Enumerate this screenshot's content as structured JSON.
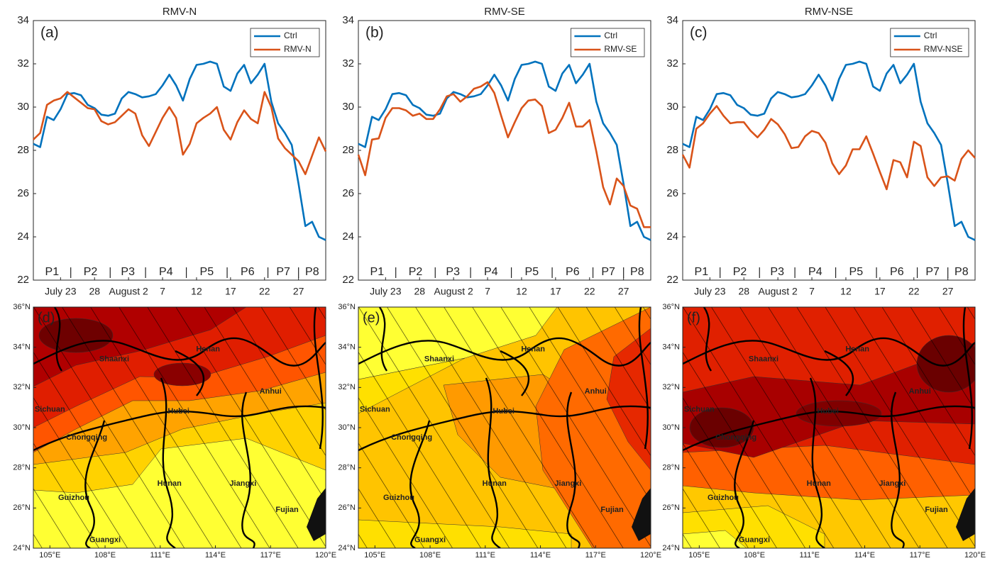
{
  "chart_data": [
    {
      "type": "line",
      "title": "RMV-N",
      "panel_label": "(a)",
      "categories": [
        null,
        null,
        null,
        null,
        "July 23",
        null,
        null,
        null,
        null,
        "28",
        null,
        null,
        null,
        null,
        "August 2",
        null,
        null,
        null,
        null,
        "7",
        null,
        null,
        null,
        null,
        "12",
        null,
        null,
        null,
        null,
        "17",
        null,
        null,
        null,
        null,
        "22",
        null,
        null,
        null,
        null,
        "27",
        null,
        null,
        null,
        null
      ],
      "series": [
        {
          "name": "Ctrl",
          "color": "#0072bd",
          "values": [
            28.3,
            28.15,
            29.55,
            29.4,
            29.9,
            30.6,
            30.65,
            30.55,
            30.1,
            29.95,
            29.65,
            29.6,
            29.7,
            30.4,
            30.7,
            30.6,
            30.45,
            30.5,
            30.6,
            31.0,
            31.5,
            31.0,
            30.3,
            31.3,
            31.95,
            32.0,
            32.1,
            32.0,
            30.95,
            30.75,
            31.55,
            31.95,
            31.1,
            31.5,
            32.0,
            30.25,
            29.25,
            28.8,
            28.25,
            26.45,
            24.5,
            24.7,
            24.0,
            23.85
          ]
        },
        {
          "name": "RMV-N",
          "color": "#d95319",
          "values": [
            28.5,
            28.8,
            30.1,
            30.3,
            30.4,
            30.7,
            30.45,
            30.2,
            29.95,
            29.9,
            29.35,
            29.2,
            29.3,
            29.6,
            29.9,
            29.7,
            28.7,
            28.2,
            28.85,
            29.5,
            30.0,
            29.5,
            27.8,
            28.3,
            29.25,
            29.5,
            29.7,
            30.0,
            28.95,
            28.5,
            29.3,
            29.85,
            29.45,
            29.25,
            30.7,
            30.0,
            28.55,
            28.1,
            27.8,
            27.5,
            26.9,
            27.75,
            28.6,
            27.95
          ]
        }
      ],
      "ylim": [
        22,
        34
      ],
      "yticks": [
        22,
        24,
        26,
        28,
        30,
        32,
        34
      ],
      "periods": [
        "P1",
        "P2",
        "P3",
        "P4",
        "P5",
        "P6",
        "P7",
        "P8"
      ],
      "period_bounds": [
        5.5,
        11.3,
        16.5,
        22.5,
        28.5,
        34.5,
        39
      ],
      "legend": "upper right"
    },
    {
      "type": "line",
      "title": "RMV-SE",
      "panel_label": "(b)",
      "categories": [
        null,
        null,
        null,
        null,
        "July 23",
        null,
        null,
        null,
        null,
        "28",
        null,
        null,
        null,
        null,
        "August 2",
        null,
        null,
        null,
        null,
        "7",
        null,
        null,
        null,
        null,
        "12",
        null,
        null,
        null,
        null,
        "17",
        null,
        null,
        null,
        null,
        "22",
        null,
        null,
        null,
        null,
        "27",
        null,
        null,
        null,
        null
      ],
      "series": [
        {
          "name": "Ctrl",
          "color": "#0072bd",
          "values": [
            28.3,
            28.15,
            29.55,
            29.4,
            29.9,
            30.6,
            30.65,
            30.55,
            30.1,
            29.95,
            29.65,
            29.6,
            29.7,
            30.4,
            30.7,
            30.6,
            30.45,
            30.5,
            30.6,
            31.0,
            31.5,
            31.0,
            30.3,
            31.3,
            31.95,
            32.0,
            32.1,
            32.0,
            30.95,
            30.75,
            31.55,
            31.95,
            31.1,
            31.5,
            32.0,
            30.25,
            29.25,
            28.8,
            28.25,
            26.45,
            24.5,
            24.7,
            24.0,
            23.85
          ]
        },
        {
          "name": "RMV-SE",
          "color": "#d95319",
          "values": [
            27.8,
            26.85,
            28.5,
            28.55,
            29.5,
            29.95,
            29.95,
            29.85,
            29.6,
            29.7,
            29.45,
            29.45,
            29.9,
            30.5,
            30.6,
            30.25,
            30.5,
            30.85,
            30.95,
            31.15,
            30.65,
            29.6,
            28.6,
            29.3,
            29.95,
            30.3,
            30.35,
            30.05,
            28.8,
            28.95,
            29.5,
            30.2,
            29.1,
            29.1,
            29.4,
            27.95,
            26.3,
            25.5,
            26.7,
            26.35,
            25.45,
            25.3,
            24.45,
            24.45
          ]
        }
      ],
      "ylim": [
        22,
        34
      ],
      "yticks": [
        22,
        24,
        26,
        28,
        30,
        32,
        34
      ],
      "periods": [
        "P1",
        "P2",
        "P3",
        "P4",
        "P5",
        "P6",
        "P7",
        "P8"
      ],
      "period_bounds": [
        5.5,
        11.3,
        16.5,
        22.5,
        28.5,
        34.5,
        39
      ],
      "legend": "upper right"
    },
    {
      "type": "line",
      "title": "RMV-NSE",
      "panel_label": "(c)",
      "categories": [
        null,
        null,
        null,
        null,
        "July 23",
        null,
        null,
        null,
        null,
        "28",
        null,
        null,
        null,
        null,
        "August 2",
        null,
        null,
        null,
        null,
        "7",
        null,
        null,
        null,
        null,
        "12",
        null,
        null,
        null,
        null,
        "17",
        null,
        null,
        null,
        null,
        "22",
        null,
        null,
        null,
        null,
        "27",
        null,
        null,
        null,
        null
      ],
      "series": [
        {
          "name": "Ctrl",
          "color": "#0072bd",
          "values": [
            28.3,
            28.15,
            29.55,
            29.4,
            29.9,
            30.6,
            30.65,
            30.55,
            30.1,
            29.95,
            29.65,
            29.6,
            29.7,
            30.4,
            30.7,
            30.6,
            30.45,
            30.5,
            30.6,
            31.0,
            31.5,
            31.0,
            30.3,
            31.3,
            31.95,
            32.0,
            32.1,
            32.0,
            30.95,
            30.75,
            31.55,
            31.95,
            31.1,
            31.5,
            32.0,
            30.25,
            29.25,
            28.8,
            28.25,
            26.45,
            24.5,
            24.7,
            24.0,
            23.85
          ]
        },
        {
          "name": "RMV-NSE",
          "color": "#d95319",
          "values": [
            27.8,
            27.2,
            29.0,
            29.25,
            29.7,
            30.05,
            29.6,
            29.25,
            29.3,
            29.3,
            28.9,
            28.6,
            28.95,
            29.45,
            29.2,
            28.75,
            28.1,
            28.15,
            28.65,
            28.9,
            28.8,
            28.35,
            27.4,
            26.9,
            27.3,
            28.05,
            28.05,
            28.65,
            27.85,
            27.0,
            26.2,
            27.55,
            27.45,
            26.75,
            28.4,
            28.2,
            26.75,
            26.35,
            26.75,
            26.8,
            26.6,
            27.6,
            28.0,
            27.65
          ]
        }
      ],
      "ylim": [
        22,
        34
      ],
      "yticks": [
        22,
        24,
        26,
        28,
        30,
        32,
        34
      ],
      "periods": [
        "P1",
        "P2",
        "P3",
        "P4",
        "P5",
        "P6",
        "P7",
        "P8"
      ],
      "period_bounds": [
        5.5,
        11.3,
        16.5,
        22.5,
        28.5,
        34.5,
        39
      ],
      "legend": "upper right"
    }
  ],
  "maps": [
    {
      "panel_label": "(d)",
      "lonlim": [
        104.1,
        120
      ],
      "latlim": [
        24,
        36
      ],
      "lon_ticks": [
        {
          "value": 105,
          "label": "105°E"
        },
        {
          "value": 108,
          "label": "108°E"
        },
        {
          "value": 111,
          "label": "111°E"
        },
        {
          "value": 114,
          "label": "114°E"
        },
        {
          "value": 117,
          "label": "117°E"
        },
        {
          "value": 120,
          "label": "120°E"
        }
      ],
      "lat_ticks": [
        {
          "value": 36,
          "label": "36°N"
        },
        {
          "value": 34,
          "label": "34°N"
        },
        {
          "value": 32,
          "label": "32°N"
        },
        {
          "value": 30,
          "label": "30°N"
        },
        {
          "value": 28,
          "label": "28°N"
        },
        {
          "value": 26,
          "label": "26°N"
        },
        {
          "value": 24,
          "label": "24°N"
        }
      ],
      "provinces": [
        "Shaanxi",
        "Henan",
        "Anhui",
        "Sichuan",
        "Hubei",
        "Chongqing",
        "Hunan",
        "Jiangxi",
        "Guizhou",
        "Fujian",
        "Guangxi"
      ]
    },
    {
      "panel_label": "(e)",
      "lonlim": [
        104.1,
        120
      ],
      "latlim": [
        24,
        36
      ],
      "lon_ticks": [
        {
          "value": 105,
          "label": "105°E"
        },
        {
          "value": 108,
          "label": "108°E"
        },
        {
          "value": 111,
          "label": "111°E"
        },
        {
          "value": 114,
          "label": "114°E"
        },
        {
          "value": 117,
          "label": "117°E"
        },
        {
          "value": 120,
          "label": "120°E"
        }
      ],
      "lat_ticks": [
        {
          "value": 36,
          "label": "36°N"
        },
        {
          "value": 34,
          "label": "34°N"
        },
        {
          "value": 32,
          "label": "32°N"
        },
        {
          "value": 30,
          "label": "30°N"
        },
        {
          "value": 28,
          "label": "28°N"
        },
        {
          "value": 26,
          "label": "26°N"
        },
        {
          "value": 24,
          "label": "24°N"
        }
      ],
      "provinces": [
        "Shaanxi",
        "Henan",
        "Anhui",
        "Sichuan",
        "Hubei",
        "Chongqing",
        "Hunan",
        "Jiangxi",
        "Guizhou",
        "Fujian",
        "Guangxi"
      ]
    },
    {
      "panel_label": "(f)",
      "lonlim": [
        104.1,
        120
      ],
      "latlim": [
        24,
        36
      ],
      "lon_ticks": [
        {
          "value": 105,
          "label": "105°E"
        },
        {
          "value": 108,
          "label": "108°E"
        },
        {
          "value": 111,
          "label": "111°E"
        },
        {
          "value": 114,
          "label": "114°E"
        },
        {
          "value": 117,
          "label": "117°E"
        },
        {
          "value": 120,
          "label": "120°E"
        }
      ],
      "lat_ticks": [
        {
          "value": 36,
          "label": "36°N"
        },
        {
          "value": 34,
          "label": "34°N"
        },
        {
          "value": 32,
          "label": "32°N"
        },
        {
          "value": 30,
          "label": "30°N"
        },
        {
          "value": 28,
          "label": "28°N"
        },
        {
          "value": 26,
          "label": "26°N"
        },
        {
          "value": 24,
          "label": "24°N"
        }
      ],
      "provinces": [
        "Shaanxi",
        "Henan",
        "Anhui",
        "Sichuan",
        "Hubei",
        "Chongqing",
        "Hunan",
        "Jiangxi",
        "Guizhou",
        "Fujian",
        "Guangxi"
      ]
    }
  ]
}
